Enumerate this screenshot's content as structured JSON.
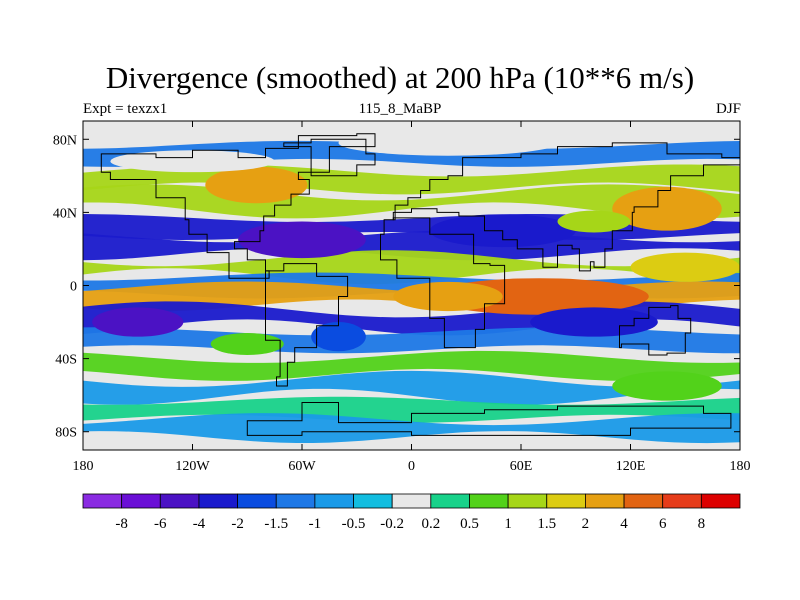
{
  "chart_data": {
    "type": "heatmap",
    "title": "Divergence (smoothed) at 200 hPa (10**6 m/s)",
    "subtitle_left": "Expt = texzx1",
    "subtitle_center": "115_8_MaBP",
    "subtitle_right": "DJF",
    "x_ticks": [
      -180,
      -120,
      -60,
      0,
      60,
      120,
      180
    ],
    "x_tick_labels": [
      "180",
      "120W",
      "60W",
      "0",
      "60E",
      "120E",
      "180"
    ],
    "y_ticks": [
      80,
      40,
      0,
      -40,
      -80
    ],
    "y_tick_labels": [
      "80N",
      "40N",
      "0",
      "40S",
      "80S"
    ],
    "xlim": [
      -180,
      180
    ],
    "ylim": [
      -90,
      90
    ],
    "colorbar": {
      "levels": [
        "-8",
        "-6",
        "-4",
        "-2",
        "-1.5",
        "-1",
        "-0.5",
        "-0.2",
        "0.2",
        "0.5",
        "1",
        "1.5",
        "2",
        "4",
        "6",
        "8"
      ],
      "colors": [
        "#8a2be2",
        "#6a0fd6",
        "#4b12c4",
        "#1a1acc",
        "#0a4ce0",
        "#1e78e6",
        "#1a9ae8",
        "#12bde0",
        "#e8e8e8",
        "#18d28a",
        "#52d21a",
        "#a6d618",
        "#dccc12",
        "#e6a012",
        "#e26412",
        "#e63c1a",
        "#dd0000"
      ]
    },
    "bands": [
      {
        "lat": 72,
        "class": 5
      },
      {
        "lat": 58,
        "class": 11
      },
      {
        "lat": 46,
        "class": 11
      },
      {
        "lat": 32,
        "class": 3
      },
      {
        "lat": 22,
        "class": 3
      },
      {
        "lat": 10,
        "class": 11
      },
      {
        "lat": 0,
        "class": 5
      },
      {
        "lat": -6,
        "class": 13
      },
      {
        "lat": -18,
        "class": 3
      },
      {
        "lat": -30,
        "class": 5
      },
      {
        "lat": -44,
        "class": 10
      },
      {
        "lat": -56,
        "class": 6
      },
      {
        "lat": -68,
        "class": 9
      },
      {
        "lat": -78,
        "class": 6
      }
    ],
    "blobs": [
      {
        "lon": -85,
        "lat": 55,
        "rx": 28,
        "ry": 10,
        "class": 13
      },
      {
        "lon": 140,
        "lat": 42,
        "rx": 30,
        "ry": 12,
        "class": 13
      },
      {
        "lon": 50,
        "lat": 30,
        "rx": 40,
        "ry": 9,
        "class": 3
      },
      {
        "lon": -60,
        "lat": 25,
        "rx": 35,
        "ry": 10,
        "class": 2
      },
      {
        "lon": 70,
        "lat": -6,
        "rx": 60,
        "ry": 10,
        "class": 14
      },
      {
        "lon": 20,
        "lat": -6,
        "rx": 30,
        "ry": 8,
        "class": 13
      },
      {
        "lon": 150,
        "lat": 10,
        "rx": 30,
        "ry": 8,
        "class": 12
      },
      {
        "lon": -150,
        "lat": -20,
        "rx": 25,
        "ry": 8,
        "class": 2
      },
      {
        "lon": 100,
        "lat": -20,
        "rx": 35,
        "ry": 8,
        "class": 3
      },
      {
        "lon": -40,
        "lat": -28,
        "rx": 15,
        "ry": 8,
        "class": 4
      },
      {
        "lon": 140,
        "lat": -55,
        "rx": 30,
        "ry": 8,
        "class": 10
      },
      {
        "lon": -120,
        "lat": 68,
        "rx": 45,
        "ry": 6,
        "class": 8
      },
      {
        "lon": 20,
        "lat": 78,
        "rx": 60,
        "ry": 7,
        "class": 8
      },
      {
        "lon": 100,
        "lat": 35,
        "rx": 20,
        "ry": 6,
        "class": 11
      },
      {
        "lon": -90,
        "lat": -32,
        "rx": 20,
        "ry": 6,
        "class": 10
      }
    ]
  }
}
